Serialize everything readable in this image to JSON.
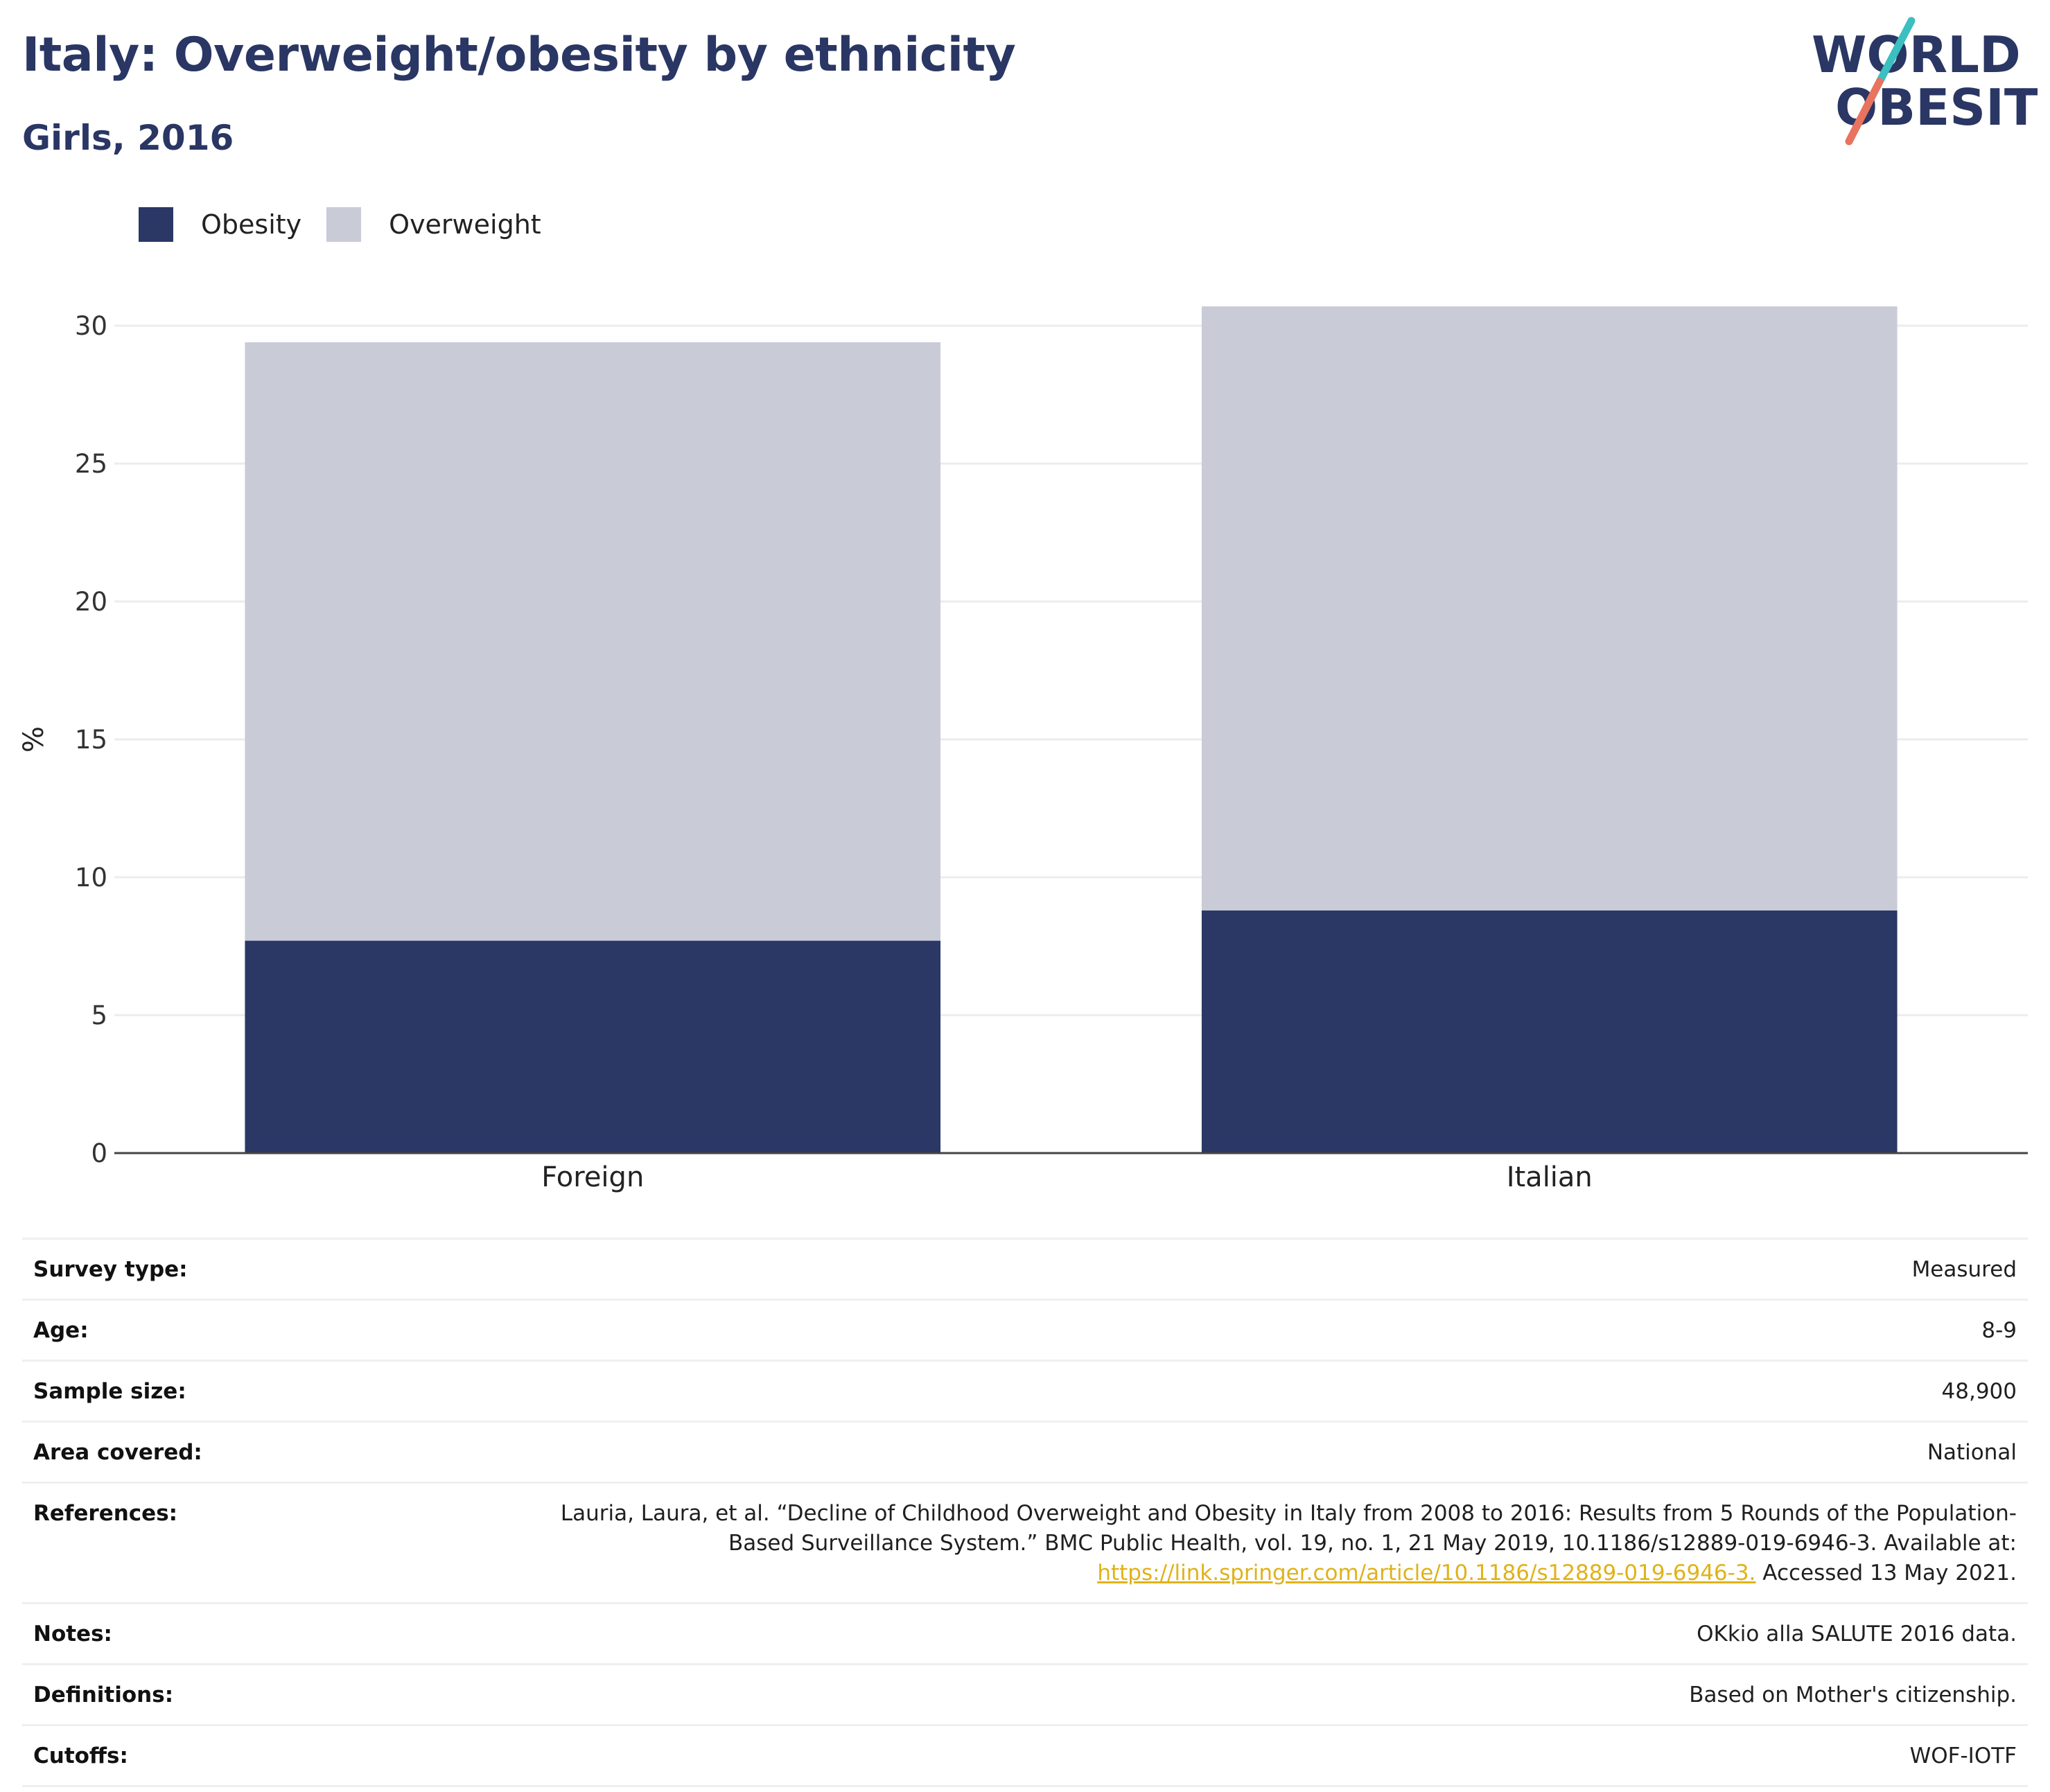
{
  "header": {
    "title": "Italy: Overweight/obesity by ethnicity",
    "subtitle": "Girls, 2016"
  },
  "logo": {
    "line1": "WORLD",
    "line2": "OBESITY"
  },
  "colors": {
    "obesity": "#2b3765",
    "overweight": "#c9cbd7",
    "title": "#2a3663",
    "link": "#e0b21a",
    "logo_teal": "#3bbfc0",
    "logo_coral": "#e8735e"
  },
  "legend": [
    {
      "label": "Obesity",
      "color": "#2b3765"
    },
    {
      "label": "Overweight",
      "color": "#c9cbd7"
    }
  ],
  "chart_data": {
    "type": "bar",
    "stacked": true,
    "categories": [
      "Foreign",
      "Italian"
    ],
    "series": [
      {
        "name": "Obesity",
        "values": [
          7.7,
          8.8
        ]
      },
      {
        "name": "Overweight",
        "values": [
          21.7,
          21.9
        ]
      }
    ],
    "ylabel": "%",
    "ylim": [
      0,
      30
    ],
    "yticks": [
      0,
      5,
      10,
      15,
      20,
      25,
      30
    ],
    "grid": true,
    "legend_position": "top-left"
  },
  "info": [
    {
      "label": "Survey type:",
      "value": "Measured"
    },
    {
      "label": "Age:",
      "value": "8-9"
    },
    {
      "label": "Sample size:",
      "value": "48,900"
    },
    {
      "label": "Area covered:",
      "value": "National"
    },
    {
      "label": "References:",
      "value_lines": [
        "Lauria, Laura, et al. “Decline of Childhood Overweight and Obesity in Italy from 2008 to 2016: Results from 5 Rounds of the Population-",
        "Based Surveillance System.” BMC Public Health, vol. 19, no. 1, 21 May 2019, 10.1186/s12889-019-6946-3. Available at:"
      ],
      "link": "https://link.springer.com/article/10.1186/s12889-019-6946-3.",
      "suffix": " Accessed 13 May 2021."
    },
    {
      "label": "Notes:",
      "value": "OKkio alla SALUTE 2016 data."
    },
    {
      "label": "Definitions:",
      "value": "Based on Mother's citizenship."
    },
    {
      "label": "Cutoffs:",
      "value": "WOF-IOTF"
    }
  ]
}
